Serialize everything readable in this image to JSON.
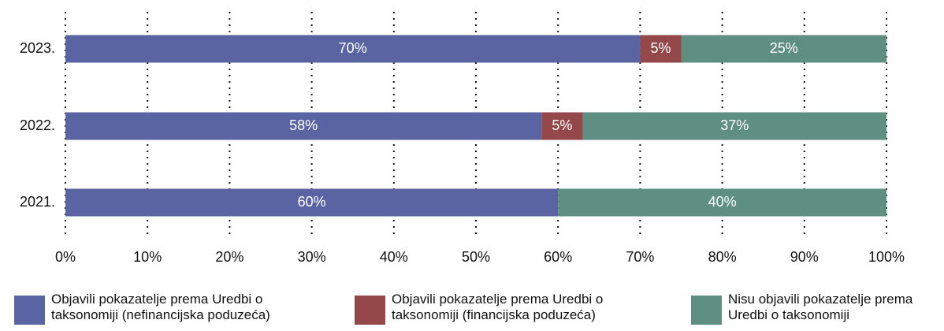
{
  "chart_data": {
    "type": "stacked-barh",
    "categories": [
      "2023.",
      "2022.",
      "2021."
    ],
    "series": [
      {
        "name": "Objavili pokazatelje prema Uredbi o taksonomiji (nefinancijska poduzeća)",
        "color": "#5b64a3",
        "values": [
          70,
          58,
          60
        ],
        "value_labels": [
          "70%",
          "58%",
          "60%"
        ]
      },
      {
        "name": "Objavili pokazatelje prema Uredbi o taksonomiji (financijska poduzeća)",
        "color": "#95484a",
        "values": [
          5,
          5,
          null
        ],
        "value_labels": [
          "5%",
          "5%",
          null
        ]
      },
      {
        "name": "Nisu objavili pokazatelje prema Uredbi o taksonomiji",
        "color": "#5f8f80",
        "values": [
          25,
          37,
          40
        ],
        "value_labels": [
          "25%",
          "37%",
          "40%"
        ]
      }
    ],
    "xlim": [
      0,
      100
    ],
    "xticks": [
      {
        "value": 0,
        "label": "0%"
      },
      {
        "value": 10,
        "label": "10%"
      },
      {
        "value": 20,
        "label": "20%"
      },
      {
        "value": 30,
        "label": "30%"
      },
      {
        "value": 40,
        "label": "40%"
      },
      {
        "value": 50,
        "label": "50%"
      },
      {
        "value": 60,
        "label": "60%"
      },
      {
        "value": 70,
        "label": "70%"
      },
      {
        "value": 80,
        "label": "80%"
      },
      {
        "value": 90,
        "label": "90%"
      },
      {
        "value": 100,
        "label": "100%"
      }
    ],
    "grid": true,
    "legend": "bottom"
  }
}
